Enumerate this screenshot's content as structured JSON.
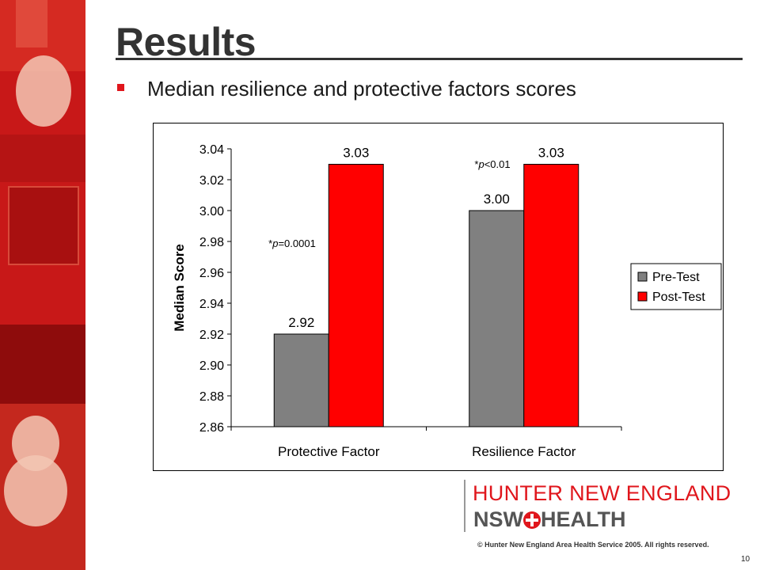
{
  "slide": {
    "title": "Results",
    "bullet": "Median resilience and protective factors scores",
    "page_number": "10"
  },
  "logo": {
    "line1": "HUNTER NEW ENGLAND",
    "line2_left": "NSW",
    "line2_right": "HEALTH",
    "copyright": "© Hunter New England Area Health Service 2005. All rights reserved."
  },
  "colors": {
    "accent": "#e0161c",
    "pre_test": "#808080",
    "post_test": "#ff0000"
  },
  "chart_data": {
    "type": "bar",
    "title": "",
    "xlabel": "",
    "ylabel": "Median Score",
    "categories": [
      "Protective Factor",
      "Resilience Factor"
    ],
    "series": [
      {
        "name": "Pre-Test",
        "color": "#808080",
        "values": [
          2.92,
          3.0
        ],
        "labels": [
          "2.92",
          "3.00"
        ]
      },
      {
        "name": "Post-Test",
        "color": "#ff0000",
        "values": [
          3.03,
          3.03
        ],
        "labels": [
          "3.03",
          "3.03"
        ]
      }
    ],
    "ylim": [
      2.86,
      3.04
    ],
    "yticks": [
      "2.86",
      "2.88",
      "2.90",
      "2.92",
      "2.94",
      "2.96",
      "2.98",
      "3.00",
      "3.02",
      "3.04"
    ],
    "ytick_values": [
      2.86,
      2.88,
      2.9,
      2.92,
      2.94,
      2.96,
      2.98,
      3.0,
      3.02,
      3.04
    ],
    "annotations": [
      {
        "prefix": "*",
        "italic": "p",
        "suffix": "=0.0001",
        "category": "Protective Factor"
      },
      {
        "prefix": "*",
        "italic": "p",
        "suffix": "<0.01",
        "category": "Resilience Factor"
      }
    ],
    "legend_position": "right",
    "grid": false
  }
}
